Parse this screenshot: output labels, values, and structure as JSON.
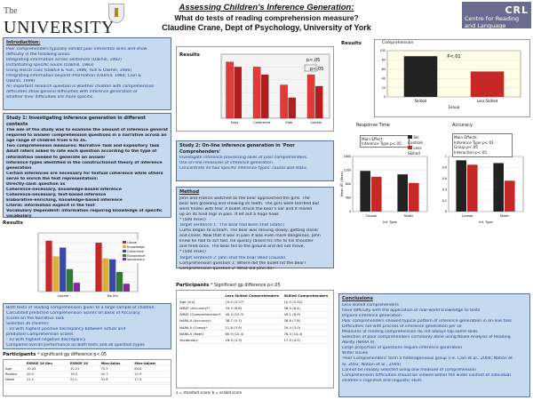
{
  "header": {
    "logo_the": "The",
    "logo_name": "UNIVERSITY of York",
    "title_line1": "Assessing Children's Inference Generation:",
    "title_line2": "What do tests of reading comprehension measure?",
    "title_line3": "Claudine Crane, Dept of Psychology, University of York",
    "centre_text": "Centre for Reading and Language",
    "centre_mark": "CRL"
  },
  "intro": {
    "heading": "Introduction:",
    "lines": [
      "Poor comprehenders typically exhibit poor inferential skills and show",
      "difficulty in the following areas:",
      "Integrating information across sentences (Oakhill, 1982)",
      "Instantiating specific nouns (Oakhill, 1983)",
      "Using lexical cues (Oakhill & Yuill, 1986; Yuill & Oakhill, 1986)",
      "Integrating information beyond information (Oakhill, 1984; Cain &",
      "Oakhill, 1999)",
      "An important research question is whether children with comprehension",
      "difficulties show general difficulties with inference generation or",
      "whether their difficulties are more specific."
    ]
  },
  "study1": {
    "heading": "Study 1: Investigating inference generation in different contexts",
    "lines": [
      "The aim of the study was to examine the amount of inference generation",
      "required to answer comprehension questions in a narrative across an",
      "age range of children from 6 to 16.",
      "Two comprehension measures: Narrative Task and Expository Task",
      "Adult raters asked to rate each question according to the type of",
      "information needed to generate an answer",
      "Inference types identified in the constructionist theory of inference",
      "generation",
      "Certain inferences are necessary for textual coherence while others",
      "serve to enrich the text representation:",
      "Directly-said: question as",
      "Coherence-necessary, knowledge-based inference",
      "Coherence-necessary, text-based inference",
      "Elaborative-enriching, knowledge-based inference",
      "Literal: information explicit in the text",
      "Vocabulary Dependent: information requiring knowledge of specific",
      "vocabulary"
    ]
  },
  "results1": {
    "heading": "Results",
    "legend": [
      "Literal",
      "Knowledge",
      "Coherence",
      "Elaborative",
      "Vocabulary"
    ],
    "groups": [
      "Locale",
      "Bo lim"
    ],
    "values": [
      [
        5.2,
        3.6,
        4.5,
        2.3,
        0.9
      ],
      [
        5.0,
        3.4,
        3.3,
        2.0,
        0.8
      ]
    ],
    "ylim": [
      0,
      6
    ]
  },
  "results1_notes": {
    "lines": [
      "Both tests of reading comprehension given to a large sample of children.",
      "Calculated predicted Comprehension Scores on basis of Accuracy",
      "scores on the Narrative Task",
      "Selected 30 children:",
      "- 10 with highest positive discrepancy between actual and",
      "  predicted Comprehension scores",
      "- 10 with highest negative discrepancy",
      "Compared overall performance on both tests and all question types"
    ]
  },
  "participants1": {
    "heading": "Participants",
    "note": "* significant gp difference p<.05",
    "headers": [
      "",
      "RSRGE 18 Gen",
      "RSRGE 18",
      "Miss-Adjus",
      "Miss-Adjust"
    ],
    "rows": [
      [
        "Age",
        "10.43",
        "10.21",
        "72.5",
        "84.8"
      ],
      [
        "Ravens",
        "20.0",
        "19.3",
        "41.7",
        "21.9"
      ],
      [
        "Neale",
        "21.2",
        "22.1",
        "31.6",
        "27.3"
      ],
      [
        "",
        "",
        "",
        "",
        ""
      ]
    ]
  },
  "results_mid": {
    "heading": "Results",
    "p_label1": "p<.05",
    "p_label2": "p<.05",
    "groups": [
      "Easy",
      "Coherence",
      "Elab",
      "Lexical"
    ],
    "values": [
      [
        44,
        40
      ],
      [
        40,
        34
      ],
      [
        26,
        16
      ],
      [
        34,
        25
      ]
    ],
    "ylim": [
      0,
      50
    ]
  },
  "study2": {
    "heading": "Study 2: On-line inference generation in 'Poor Comprehenders'",
    "lines": [
      "Investigate inference processing skills of poor comprehenders.",
      "Use on-line measures of inference generation",
      "Concentrate on two specific inference types: causal and static."
    ]
  },
  "method": {
    "heading": "Method",
    "lines": [
      "John and Francis watched as the bear approached the girls. The",
      "bear was growling and showing its teeth. The girls were terrified but",
      "were frozen with fear. A bullet struck the bear's ear and it reared",
      "up on its hind legs in pain. It let out a huge howl.",
      "* (500 msec)",
      "Target sentence 1: 'The bear had been shot (static)",
      "Curtis began to scream. The bear was moving slowly, getting closer",
      "and closer. Now that it was in pain it was even more dangerous. John",
      "knew he had to act fast. He quickly raised his rifle to his shoulder",
      "and fired once. The bear fell to the ground and did not move.",
      "* (500 msec)",
      "Target sentence 2: John shot the bear dead (causal)",
      "Comprehension question 1: Where did the bullet hit the bear?",
      "Comprehension question 2: What did John do?"
    ]
  },
  "participants2": {
    "heading": "Participants",
    "note": "* Significant gp difference p<.05",
    "headers": [
      "",
      "Less Skilled Comprehenders",
      "Skilled Comprehenders"
    ],
    "rows": [
      [
        "Age (yrs)",
        "10.0 (0.57)",
        "10.0 (0.52)"
      ],
      [
        "WRAT (Accuracy)*",
        "34.3 (8.8)",
        "36.5 (8.4)"
      ],
      [
        "WRAT (Comprehension)*",
        "40.4 (10.3)",
        "49.1 (8.9)"
      ],
      [
        "NARA-II (Accuracy)",
        "38.7 (5.7)",
        "38.6 (7.8)"
      ],
      [
        "NARA-II (Comp)*",
        "21.8 (3.9)",
        "29.4 (3.0)"
      ],
      [
        "NARA-II (Rate)",
        "60.9 (10.4)",
        "78.4 (14.4)"
      ],
      [
        "Vocabulary",
        "16.3 (4.3)",
        "17.0 (4.5)"
      ]
    ],
    "footnote": "a = standard score; b = scaled score"
  },
  "results_right": {
    "heading": "Results",
    "comp_title": "Comprehension",
    "p_label": "P<.01",
    "categories": [
      "Skilled",
      "Less Skilled"
    ],
    "values": [
      88,
      55
    ],
    "ylim": [
      0,
      100
    ],
    "xlabel": "Group",
    "rt_title": "Response Time",
    "acc_title": "Accuracy",
    "rt_box_title": "Main Effect:",
    "rt_box_line": "Inference Type p<.05",
    "rt_legend": [
      "Skl Controls",
      "Less Skilled"
    ],
    "rt_ylabel": "Mean RT (Msec)",
    "rt_groups": [
      "Causal",
      "Static"
    ],
    "rt_values": [
      [
        1180,
        1010
      ],
      [
        1080,
        830
      ]
    ],
    "rt_ylim": [
      0,
      1600
    ],
    "acc_box_title": "Main Effects:",
    "acc_box_lines": [
      "Inference Type p<.01",
      "Group p<.05",
      "Interaction p<.05"
    ],
    "acc_groups": [
      "Causal",
      "Static"
    ],
    "acc_values": [
      [
        0.93,
        0.85
      ],
      [
        0.88,
        0.56
      ]
    ],
    "acc_ylim": [
      0,
      1
    ],
    "rt_xlabel": "Inf. Type",
    "acc_xlabel": "Inf. Type"
  },
  "conclusions": {
    "heading": "Conclusions",
    "lines": [
      "Less-skilled comprehenders",
      "have difficulty with the application of real-world knowledge to texts",
      "Impaire inference generation",
      "Poor comprehenders showed typical pattern of inference generation in on-line task",
      "Difficulties not with process of inference generation per se",
      "Measures of reading comprehension do not always tap same skills",
      "Selection of poor comprehenders commonly done using Neale Analysis of Reading",
      "Ability (NARA II).",
      "Large proportion of questions require inference generation",
      "Wider Issues",
      "'Poor Comprehenders' form a heterogeneous group (i.e. Cain et al., 2004; Nation et",
      "al, 2002; Nation et al., 2004)",
      "Cannot be reliably selected using one measure of comprehension",
      "Comprehension difficulties should be viewed within the wider context of individual",
      "children's cognitive and linguistic skills"
    ]
  }
}
